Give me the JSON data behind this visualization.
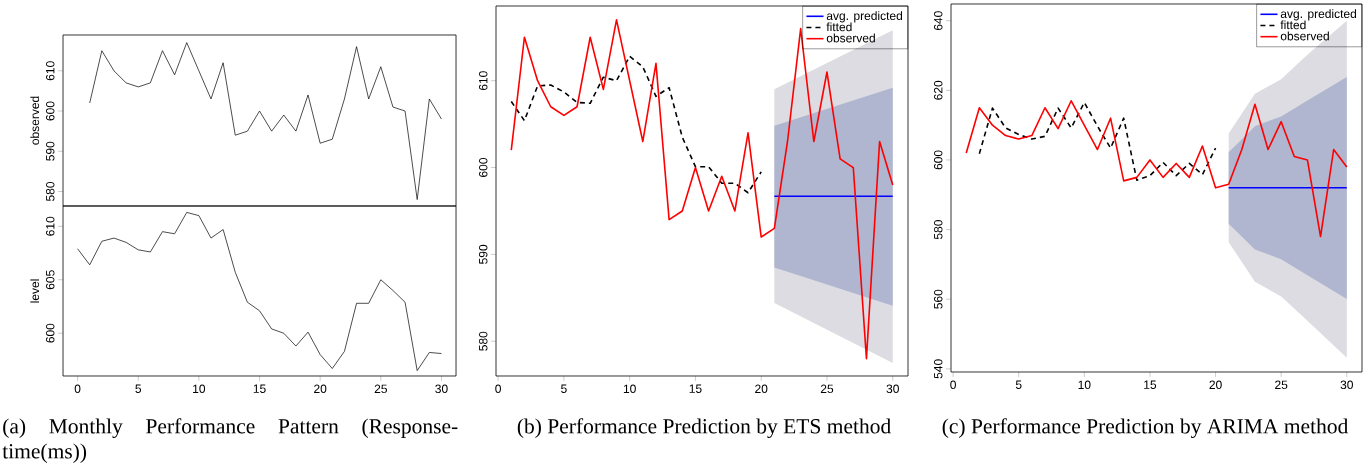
{
  "chart_data": [
    {
      "type": "line",
      "x": [
        1,
        2,
        3,
        4,
        5,
        6,
        7,
        8,
        9,
        10,
        11,
        12,
        13,
        14,
        15,
        16,
        17,
        18,
        19,
        20,
        21,
        22,
        23,
        24,
        25,
        26,
        27,
        28,
        29,
        30
      ],
      "values": [
        602,
        615,
        610,
        607,
        606,
        607,
        615,
        609,
        617,
        610,
        603,
        612,
        594,
        595,
        600,
        595,
        599,
        595,
        604,
        592,
        593,
        603,
        616,
        603,
        611,
        601,
        600,
        578,
        603,
        598
      ],
      "color": "#000000",
      "ylabel": "observed",
      "xlim": [
        -1.2,
        31.2
      ],
      "ylim": [
        576.4,
        618.9
      ],
      "yticks": [
        580,
        590,
        600,
        610
      ],
      "tick_labels": "y"
    },
    {
      "type": "line",
      "x": [
        0,
        1,
        2,
        3,
        4,
        5,
        6,
        7,
        8,
        9,
        10,
        11,
        12,
        13,
        14,
        15,
        16,
        17,
        18,
        19,
        20,
        21,
        22,
        23,
        24,
        25,
        26,
        27,
        28,
        29,
        30
      ],
      "values": [
        607.9,
        606.4,
        608.6,
        608.9,
        608.5,
        607.8,
        607.6,
        609.5,
        609.3,
        611.3,
        611.0,
        608.9,
        609.7,
        605.7,
        602.9,
        602.1,
        600.4,
        600.0,
        598.8,
        600.1,
        598.0,
        596.7,
        598.3,
        602.8,
        602.8,
        605.0,
        604.0,
        602.9,
        596.5,
        598.2,
        598.1
      ],
      "color": "#000000",
      "ylabel": "level",
      "xlim": [
        -1.2,
        31.2
      ],
      "ylim": [
        596.0,
        611.9
      ],
      "xticks": [
        0,
        5,
        10,
        15,
        20,
        25,
        30
      ],
      "yticks": [
        600,
        605,
        610
      ],
      "annotations": [
        "(a) Monthly Performance Pattern (Response-time(ms))"
      ]
    },
    {
      "type": "line",
      "xlim": [
        -0.16,
        31.16
      ],
      "ylim": [
        576.0,
        618.6
      ],
      "xticks": [
        0,
        5,
        10,
        15,
        20,
        25,
        30
      ],
      "yticks": [
        580,
        590,
        600,
        610
      ],
      "legend": "top right",
      "annotations": [
        "(b) Performance Prediction by ETS method"
      ],
      "series": [
        {
          "color": "#dcdce2",
          "x": [
            21,
            30
          ],
          "values": [
            null,
            null
          ],
          "lower": [
            584.4,
            577.5
          ],
          "upper": [
            609.0,
            615.8
          ]
        },
        {
          "color": "#b0b6cf",
          "x": [
            21,
            30
          ],
          "values": [
            null,
            null
          ],
          "lower": [
            588.5,
            584.1
          ],
          "upper": [
            604.8,
            609.2
          ]
        },
        {
          "name": "avg. predicted",
          "color": "#0000ff",
          "x": [
            21,
            30
          ],
          "values": [
            596.7,
            596.7
          ]
        },
        {
          "name": "fitted",
          "color": "#000000",
          "line_style": "dashed",
          "x": [
            1,
            2,
            3,
            4,
            5,
            6,
            7,
            8,
            9,
            10,
            11,
            12,
            13,
            14,
            15,
            16,
            17,
            18,
            19,
            20
          ],
          "values": [
            607.6,
            605.4,
            609.4,
            609.5,
            608.7,
            607.5,
            607.4,
            610.4,
            610.0,
            612.8,
            611.6,
            608.2,
            609.2,
            603.5,
            600.1,
            600.1,
            598.2,
            598.2,
            597.1,
            599.5
          ]
        },
        {
          "name": "observed",
          "color": "#ff0000",
          "x": [
            1,
            2,
            3,
            4,
            5,
            6,
            7,
            8,
            9,
            10,
            11,
            12,
            13,
            14,
            15,
            16,
            17,
            18,
            19,
            20,
            21,
            22,
            23,
            24,
            25,
            26,
            27,
            28,
            29,
            30
          ],
          "values": [
            602,
            615,
            610,
            607,
            606,
            607,
            615,
            609,
            617,
            610,
            603,
            612,
            594,
            595,
            600,
            595,
            599,
            595,
            604,
            592,
            593,
            603,
            616,
            603,
            611,
            601,
            600,
            578,
            603,
            598
          ]
        }
      ]
    },
    {
      "type": "line",
      "xlim": [
        -0.16,
        31.16
      ],
      "ylim": [
        539.1,
        644.8
      ],
      "xticks": [
        0,
        5,
        10,
        15,
        20,
        25,
        30
      ],
      "yticks": [
        540,
        560,
        580,
        600,
        620,
        640
      ],
      "legend": "top right",
      "annotations": [
        "(c) Performance Prediction by ARIMA method"
      ],
      "series": [
        {
          "color": "#dcdce2",
          "x": [
            21,
            23,
            25,
            27,
            30
          ],
          "values": [
            null,
            null,
            null,
            null,
            null
          ],
          "lower": [
            576.4,
            565.0,
            560.8,
            553.8,
            543.2
          ],
          "upper": [
            607.6,
            619.0,
            623.2,
            630.2,
            640.0
          ]
        },
        {
          "color": "#b0b6cf",
          "x": [
            21,
            23,
            25,
            27,
            30
          ],
          "values": [
            null,
            null,
            null,
            null,
            null
          ],
          "lower": [
            581.7,
            574.3,
            571.5,
            566.9,
            560.1
          ],
          "upper": [
            602.2,
            609.7,
            612.5,
            617.1,
            623.8
          ]
        },
        {
          "name": "avg. predicted",
          "color": "#0000ff",
          "x": [
            21,
            30
          ],
          "values": [
            592.0,
            592.0
          ]
        },
        {
          "name": "fitted",
          "color": "#000000",
          "line_style": "dashed",
          "x": [
            2,
            3,
            4,
            5,
            6,
            7,
            8,
            9,
            10,
            11,
            12,
            13,
            14,
            15,
            16,
            17,
            18,
            19,
            20
          ],
          "values": [
            601.8,
            614.9,
            609.2,
            607.3,
            606.0,
            606.8,
            614.9,
            609.2,
            616.5,
            609.7,
            603.4,
            612.0,
            594.2,
            595.5,
            599.3,
            595.5,
            599.0,
            595.8,
            603.4
          ]
        },
        {
          "name": "observed",
          "color": "#ff0000",
          "x": [
            1,
            2,
            3,
            4,
            5,
            6,
            7,
            8,
            9,
            10,
            11,
            12,
            13,
            14,
            15,
            16,
            17,
            18,
            19,
            20,
            21,
            22,
            23,
            24,
            25,
            26,
            27,
            28,
            29,
            30
          ],
          "values": [
            602,
            615,
            610,
            607,
            606,
            607,
            615,
            609,
            617,
            610,
            603,
            612,
            594,
            595,
            600,
            595,
            599,
            595,
            604,
            592,
            593,
            603,
            616,
            603,
            611,
            601,
            600,
            578,
            603,
            598
          ]
        }
      ]
    }
  ]
}
